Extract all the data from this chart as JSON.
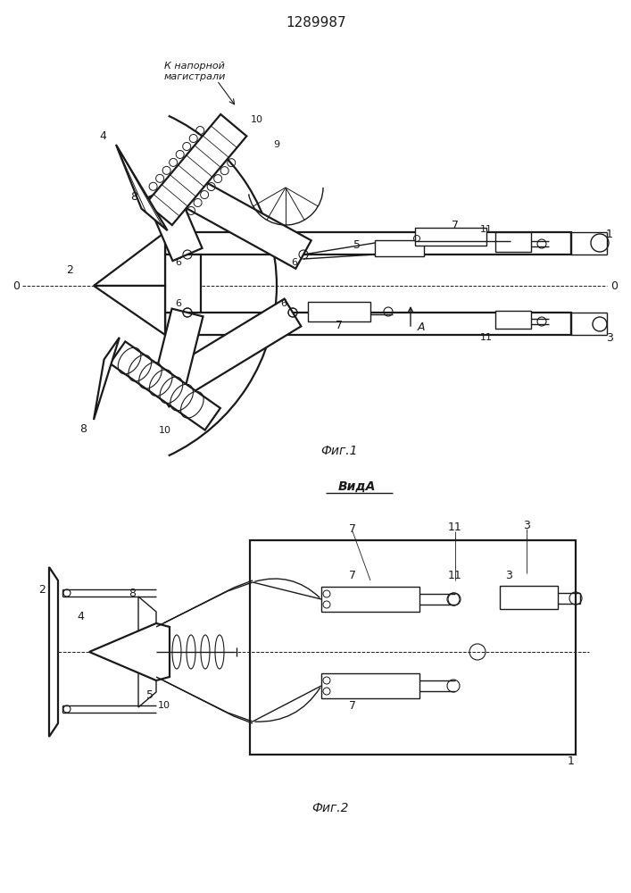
{
  "title": "1289987",
  "fig1_caption": "Фиг.1",
  "fig2_caption": "Фиг.2",
  "view_label": "ВидА",
  "napor_label": "К напорной\nмагистрали",
  "bg_color": "#ffffff",
  "line_color": "#1a1a1a",
  "lw": 1.0,
  "lw2": 1.6,
  "lw3": 0.7
}
